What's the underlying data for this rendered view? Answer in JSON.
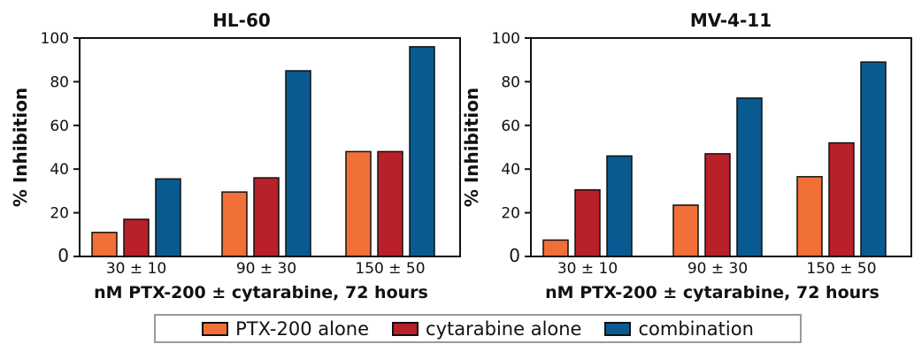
{
  "chart_data": [
    {
      "type": "bar",
      "title": "HL-60",
      "xlabel": "nM PTX-200 ± cytarabine, 72 hours",
      "ylabel": "% Inhibition",
      "ylim": [
        0,
        100
      ],
      "yticks": [
        0,
        20,
        40,
        60,
        80,
        100
      ],
      "categories": [
        "30 ± 10",
        "90 ± 30",
        "150 ± 50"
      ],
      "series": [
        {
          "name": "PTX-200 alone",
          "values": [
            11,
            29.5,
            48
          ]
        },
        {
          "name": "cytarabine alone",
          "values": [
            17,
            36,
            48
          ]
        },
        {
          "name": "combination",
          "values": [
            35.5,
            85,
            96
          ]
        }
      ],
      "grid": false
    },
    {
      "type": "bar",
      "title": "MV-4-11",
      "xlabel": "nM PTX-200 ± cytarabine, 72 hours",
      "ylabel": "% Inhibition",
      "ylim": [
        0,
        100
      ],
      "yticks": [
        0,
        20,
        40,
        60,
        80,
        100
      ],
      "categories": [
        "30 ± 10",
        "90 ± 30",
        "150 ± 50"
      ],
      "series": [
        {
          "name": "PTX-200 alone",
          "values": [
            7.5,
            23.5,
            36.5
          ]
        },
        {
          "name": "cytarabine alone",
          "values": [
            30.5,
            47,
            52
          ]
        },
        {
          "name": "combination",
          "values": [
            46,
            72.5,
            89
          ]
        }
      ],
      "grid": false
    }
  ],
  "legend": {
    "position": "bottom",
    "items": [
      {
        "label": "PTX-200 alone",
        "color": "#f07038"
      },
      {
        "label": "cytarabine alone",
        "color": "#b8202a"
      },
      {
        "label": "combination",
        "color": "#0a5a92"
      }
    ]
  }
}
